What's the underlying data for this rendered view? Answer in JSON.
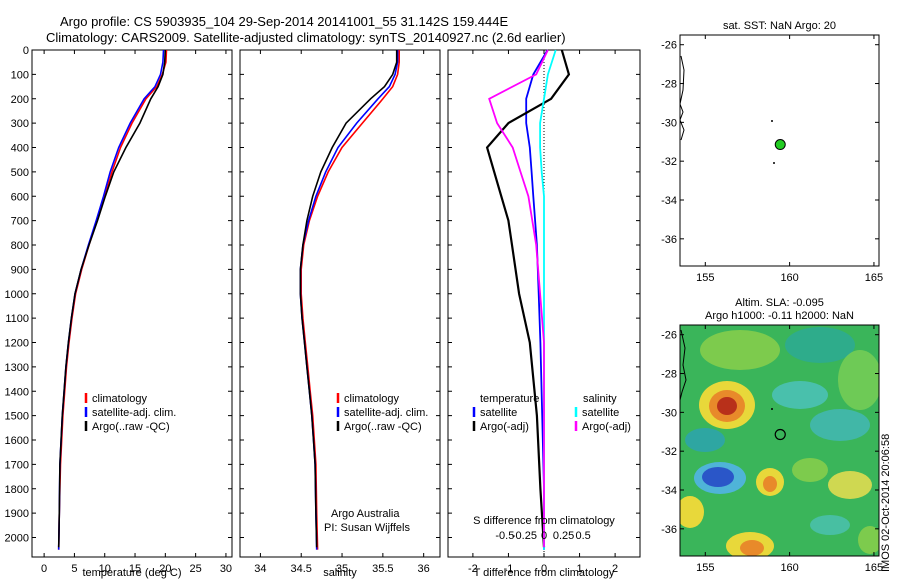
{
  "header": {
    "title_line1": "Argo profile: CS 5903935_104 29-Sep-2014 20141001_55 31.142S 159.444E",
    "title_line2": "Climatology: CARS2009. Satellite-adjusted climatology: synTS_20140927.nc (2.6d earlier)"
  },
  "side_label": "IMOS 02-Oct-2014 20:06:58",
  "colors": {
    "climatology": "#ff0000",
    "satellite": "#0000ff",
    "argo": "#000000",
    "satellite_salinity": "#00ffff",
    "argo_salinity": "#ff00ff",
    "float_marker": "#22cc22"
  },
  "chart_data": [
    {
      "type": "line",
      "panel": "temperature",
      "xlabel": "temperature (deg C)",
      "ylabel": "",
      "xlim": [
        -2,
        31
      ],
      "ylim": [
        2080,
        0
      ],
      "xticks": [
        0,
        5,
        10,
        15,
        20,
        25,
        30
      ],
      "yticks": [
        0,
        100,
        200,
        300,
        400,
        500,
        600,
        700,
        800,
        900,
        1000,
        1100,
        1200,
        1300,
        1400,
        1500,
        1600,
        1700,
        1800,
        1900,
        2000
      ],
      "legend": [
        "climatology",
        "satellite-adj. clim.",
        "Argo(..raw -QC)"
      ],
      "series": [
        {
          "name": "climatology",
          "color": "#ff0000",
          "x": [
            20.2,
            20.1,
            19.5,
            18.6,
            16.8,
            14.5,
            12.6,
            11.2,
            10.0,
            8.7,
            7.4,
            6.2,
            5.2,
            4.6,
            4.1,
            3.7,
            3.4,
            3.1,
            2.9,
            2.7,
            2.5,
            2.4
          ],
          "y": [
            0,
            50,
            100,
            150,
            200,
            300,
            400,
            500,
            600,
            700,
            800,
            900,
            1000,
            1100,
            1200,
            1300,
            1400,
            1500,
            1600,
            1700,
            1900,
            2050
          ]
        },
        {
          "name": "satellite-adj. clim.",
          "color": "#0000ff",
          "x": [
            19.7,
            19.6,
            19.2,
            18.3,
            16.5,
            14.2,
            12.3,
            10.9,
            9.8,
            8.6,
            7.3,
            6.1,
            5.1,
            4.5,
            4.0,
            3.6,
            3.3,
            3.0,
            2.8,
            2.6,
            2.5,
            2.4
          ],
          "y": [
            0,
            50,
            100,
            150,
            200,
            300,
            400,
            500,
            600,
            700,
            800,
            900,
            1000,
            1100,
            1200,
            1300,
            1400,
            1500,
            1600,
            1700,
            1900,
            2050
          ]
        },
        {
          "name": "Argo(..raw -QC)",
          "color": "#000000",
          "x": [
            20.0,
            19.9,
            19.6,
            18.8,
            17.6,
            15.8,
            13.5,
            11.5,
            10.1,
            8.8,
            7.4,
            6.1,
            5.1,
            4.5,
            4.0,
            3.6,
            3.3,
            3.0,
            2.8,
            2.6,
            2.5,
            2.4
          ],
          "y": [
            0,
            50,
            100,
            150,
            200,
            300,
            400,
            500,
            600,
            700,
            800,
            900,
            1000,
            1100,
            1200,
            1300,
            1400,
            1500,
            1600,
            1700,
            1900,
            2040
          ]
        }
      ]
    },
    {
      "type": "line",
      "panel": "salinity",
      "xlabel": "salinity",
      "xlim": [
        33.75,
        36.2
      ],
      "ylim": [
        2080,
        0
      ],
      "xticks": [
        34,
        34.5,
        35,
        35.5,
        36
      ],
      "legend": [
        "climatology",
        "satellite-adj. clim.",
        "Argo(..raw -QC)"
      ],
      "annotation": [
        "Argo Australia",
        "PI: Susan Wijffels"
      ],
      "series": [
        {
          "name": "climatology",
          "color": "#ff0000",
          "x": [
            35.7,
            35.7,
            35.68,
            35.62,
            35.5,
            35.25,
            35.0,
            34.83,
            34.7,
            34.6,
            34.53,
            34.5,
            34.5,
            34.52,
            34.55,
            34.58,
            34.61,
            34.64,
            34.66,
            34.68,
            34.69,
            34.7
          ],
          "y": [
            0,
            50,
            100,
            150,
            200,
            300,
            400,
            500,
            600,
            700,
            800,
            900,
            1000,
            1100,
            1200,
            1300,
            1400,
            1500,
            1600,
            1700,
            1900,
            2050
          ]
        },
        {
          "name": "satellite-adj. clim.",
          "color": "#0000ff",
          "x": [
            35.68,
            35.68,
            35.65,
            35.58,
            35.44,
            35.18,
            34.95,
            34.8,
            34.68,
            34.59,
            34.52,
            34.49,
            34.49,
            34.51,
            34.54,
            34.57,
            34.6,
            34.63,
            34.65,
            34.67,
            34.68,
            34.69
          ],
          "y": [
            0,
            50,
            100,
            150,
            200,
            300,
            400,
            500,
            600,
            700,
            800,
            900,
            1000,
            1100,
            1200,
            1300,
            1400,
            1500,
            1600,
            1700,
            1900,
            2050
          ]
        },
        {
          "name": "Argo(..raw -QC)",
          "color": "#000000",
          "x": [
            35.67,
            35.67,
            35.62,
            35.52,
            35.35,
            35.05,
            34.88,
            34.74,
            34.64,
            34.57,
            34.52,
            34.49,
            34.49,
            34.51,
            34.54,
            34.57,
            34.6,
            34.63,
            34.65,
            34.67,
            34.68,
            34.69
          ],
          "y": [
            0,
            50,
            100,
            150,
            200,
            300,
            400,
            500,
            600,
            700,
            800,
            900,
            1000,
            1100,
            1200,
            1300,
            1400,
            1500,
            1600,
            1700,
            1900,
            2040
          ]
        }
      ]
    },
    {
      "type": "line",
      "panel": "difference",
      "xlabel": "T difference from climatology",
      "xlabel_top": "S difference from climatology",
      "xlim": [
        -2.7,
        2.7
      ],
      "ylim": [
        2080,
        0
      ],
      "xticks_T": [
        -2,
        -1,
        0,
        1,
        2
      ],
      "xticks_S": [
        "-0.5",
        "-0.25",
        "0",
        "0.25",
        "0.5"
      ],
      "legend_title_T": "temperature",
      "legend_title_S": "salinity",
      "legend": [
        "satellite",
        "Argo(-adj)",
        "satellite",
        "Argo(-adj)"
      ],
      "series": [
        {
          "name": "satellite",
          "variable": "temperature",
          "color": "#0000ff",
          "x": [
            0.1,
            -0.3,
            -0.5,
            -0.5,
            -0.4,
            -0.35,
            -0.3,
            -0.25,
            -0.2,
            -0.15,
            -0.1,
            -0.05,
            0.0,
            0.0
          ],
          "y": [
            0,
            100,
            200,
            300,
            400,
            500,
            600,
            700,
            800,
            1000,
            1200,
            1500,
            1800,
            2050
          ]
        },
        {
          "name": "Argo(-adj)",
          "variable": "temperature",
          "color": "#000000",
          "x": [
            0.5,
            0.7,
            0.2,
            -1.0,
            -1.6,
            -1.4,
            -1.2,
            -1.0,
            -0.9,
            -0.7,
            -0.4,
            -0.2,
            -0.1,
            0.0
          ],
          "y": [
            0,
            100,
            200,
            300,
            400,
            500,
            600,
            700,
            800,
            1000,
            1200,
            1500,
            1800,
            2040
          ]
        },
        {
          "name": "satellite",
          "variable": "salinity",
          "color": "#00ffff",
          "x": [
            0.15,
            0.05,
            0.0,
            -0.05,
            -0.05,
            -0.03,
            0.0,
            0.0,
            0.0,
            0.0,
            0.0,
            0.0,
            0.0,
            0.0
          ],
          "y": [
            0,
            100,
            200,
            300,
            400,
            500,
            600,
            700,
            800,
            1000,
            1200,
            1500,
            1800,
            2050
          ]
        },
        {
          "name": "Argo(-adj)",
          "variable": "salinity",
          "color": "#ff00ff",
          "x": [
            0.05,
            -0.1,
            -0.7,
            -0.6,
            -0.4,
            -0.3,
            -0.2,
            -0.15,
            -0.1,
            -0.05,
            0.0,
            0.0,
            0.0,
            0.0
          ],
          "y": [
            0,
            100,
            200,
            300,
            400,
            500,
            600,
            700,
            800,
            1000,
            1200,
            1500,
            1800,
            2040
          ]
        }
      ]
    },
    {
      "type": "scatter",
      "panel": "map_sst",
      "title": "sat. SST: NaN Argo: 20",
      "xlim": [
        153.5,
        165.3
      ],
      "ylim": [
        -37.4,
        -25.5
      ],
      "xticks": [
        155,
        160,
        165
      ],
      "yticks": [
        -26,
        -28,
        -30,
        -32,
        -34,
        -36
      ],
      "float_position": {
        "lon": 159.444,
        "lat": -31.142
      }
    },
    {
      "type": "heatmap",
      "panel": "map_sla",
      "title_line1": "Altim. SLA: -0.095",
      "title_line2": "Argo h1000: -0.11 h2000: NaN",
      "xlim": [
        153.5,
        165.3
      ],
      "ylim": [
        -37.4,
        -25.5
      ],
      "xticks": [
        155,
        160,
        165
      ],
      "yticks": [
        -26,
        -28,
        -30,
        -32,
        -34,
        -36
      ],
      "float_position": {
        "lon": 159.444,
        "lat": -31.142
      }
    }
  ]
}
